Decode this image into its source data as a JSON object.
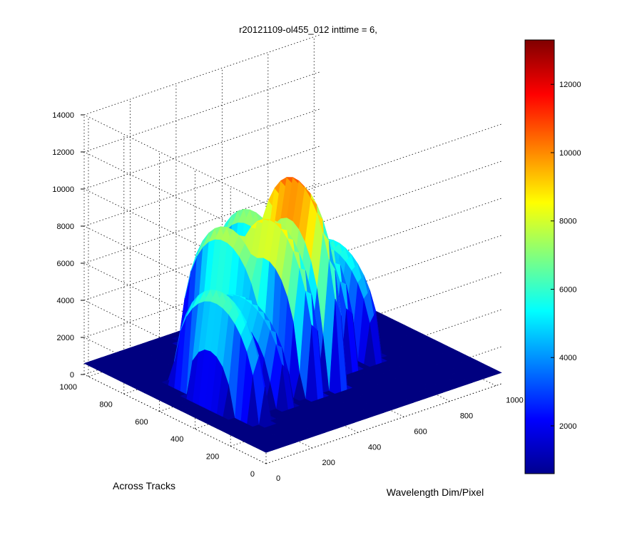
{
  "chart_data": {
    "type": "surface",
    "title": "r20121109-ol455_012 inttime = 6,",
    "xlabel": "Wavelength Dim/Pixel",
    "ylabel": "Across Tracks",
    "zlabel": "",
    "x_ticks": [
      0,
      200,
      400,
      600,
      800,
      1000
    ],
    "y_ticks": [
      0,
      200,
      400,
      600,
      800,
      1000
    ],
    "z_ticks": [
      0,
      2000,
      4000,
      6000,
      8000,
      10000,
      12000,
      14000
    ],
    "xlim": [
      0,
      1024
    ],
    "ylim": [
      0,
      1024
    ],
    "zlim": [
      0,
      14000
    ],
    "grid": true,
    "colormap": "jet",
    "colorbar": {
      "range": [
        600,
        13300
      ],
      "ticks": [
        2000,
        4000,
        6000,
        8000,
        10000,
        12000
      ]
    },
    "surface_peaks": [
      {
        "x": 150,
        "y": 450,
        "z": 6500
      },
      {
        "x": 290,
        "y": 500,
        "z": 5500
      },
      {
        "x": 380,
        "y": 700,
        "z": 7800
      },
      {
        "x": 420,
        "y": 500,
        "z": 9200
      },
      {
        "x": 520,
        "y": 500,
        "z": 11000
      },
      {
        "x": 560,
        "y": 800,
        "z": 7500
      },
      {
        "x": 650,
        "y": 600,
        "z": 7600
      },
      {
        "x": 760,
        "y": 600,
        "z": 6000
      }
    ],
    "peak_value": 11000,
    "baseline_value": 600
  }
}
